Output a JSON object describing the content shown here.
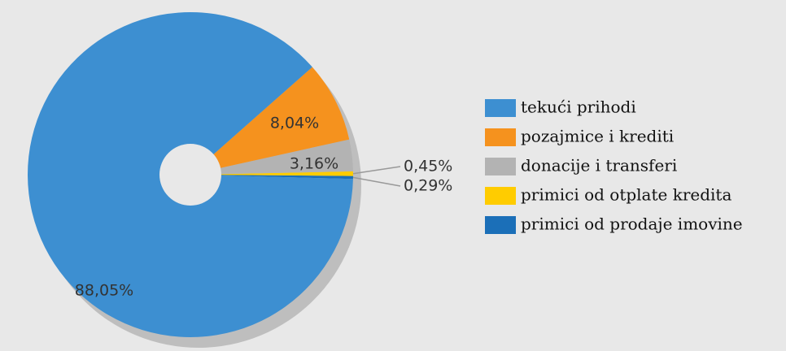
{
  "chart_data": {
    "type": "pie",
    "categories": [
      "tekući prihodi",
      "pozajmice i krediti",
      "donacije i transferi",
      "primici od otplate kredita",
      "primici od prodaje imovine"
    ],
    "values": [
      88.05,
      8.04,
      3.16,
      0.45,
      0.29
    ],
    "value_labels": [
      "88,05%",
      "8,04%",
      "3,16%",
      "0,45%",
      "0,29%"
    ],
    "colors": [
      "#3d8fd1",
      "#f5921e",
      "#b3b3b3",
      "#ffcc00",
      "#1b6fb8"
    ],
    "legend": "right"
  }
}
